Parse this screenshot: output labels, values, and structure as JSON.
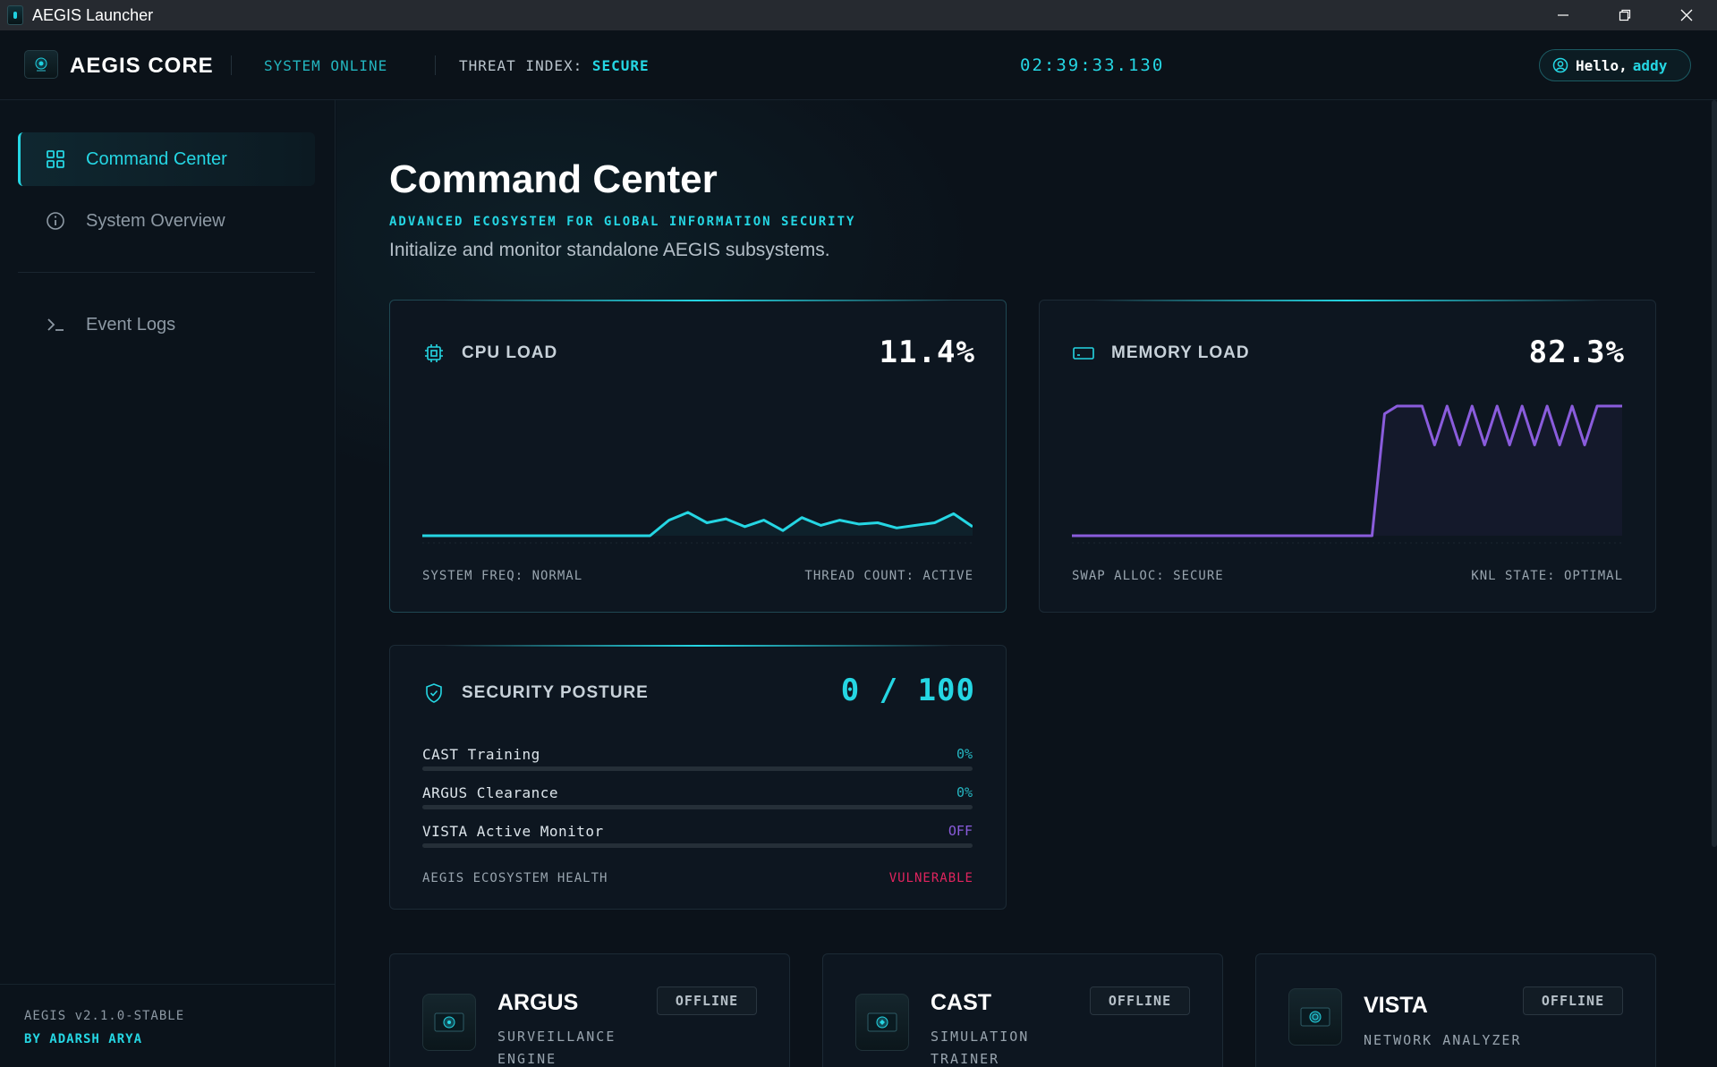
{
  "window": {
    "title": "AEGIS Launcher"
  },
  "header": {
    "brand": "AEGIS CORE",
    "status": "SYSTEM ONLINE",
    "threat_label": "THREAT INDEX:",
    "threat_value": "SECURE",
    "clock": "02:39:33.130",
    "greeting": "Hello,",
    "username": "addy"
  },
  "sidebar": {
    "items": [
      {
        "label": "Command Center",
        "icon": "grid-icon",
        "active": true
      },
      {
        "label": "System Overview",
        "icon": "info-icon",
        "active": false
      },
      {
        "label": "Event Logs",
        "icon": "terminal-icon",
        "active": false
      }
    ],
    "version": "AEGIS v2.1.0-STABLE",
    "author": "BY ADARSH ARYA"
  },
  "page": {
    "title": "Command Center",
    "tagline": "ADVANCED ECOSYSTEM FOR GLOBAL INFORMATION SECURITY",
    "description": "Initialize and monitor standalone AEGIS subsystems."
  },
  "cpu": {
    "label": "CPU LOAD",
    "value": "11.4%",
    "foot_left": "SYSTEM FREQ: NORMAL",
    "foot_right": "THREAD COUNT: ACTIVE",
    "color": "#25d6e3",
    "series": [
      0,
      0,
      0,
      0,
      0,
      0,
      0,
      0,
      0,
      0,
      0,
      0,
      0,
      12,
      18,
      10,
      13,
      7,
      12,
      4,
      14,
      8,
      12,
      9,
      10,
      6,
      8,
      10,
      17,
      7
    ]
  },
  "memory": {
    "label": "MEMORY LOAD",
    "value": "82.3%",
    "foot_left": "SWAP ALLOC: SECURE",
    "foot_right": "KNL STATE: OPTIMAL",
    "color": "#8a5cdc",
    "series": [
      0,
      0,
      0,
      0,
      0,
      0,
      0,
      0,
      0,
      0,
      0,
      0,
      0,
      0,
      0,
      0,
      0,
      0,
      0,
      0,
      0,
      0,
      0,
      0,
      0,
      94,
      100,
      100,
      100,
      70,
      100,
      70,
      100,
      70,
      100,
      70,
      100,
      70,
      100,
      70,
      100,
      70,
      100,
      100,
      100
    ]
  },
  "security": {
    "label": "SECURITY POSTURE",
    "value": "0 / 100",
    "rows": [
      {
        "label": "CAST Training",
        "value": "0%",
        "fill": 0,
        "value_color": "#25b5c0"
      },
      {
        "label": "ARGUS Clearance",
        "value": "0%",
        "fill": 0,
        "value_color": "#25b5c0"
      },
      {
        "label": "VISTA Active Monitor",
        "value": "OFF",
        "fill": 0,
        "value_color": "#8a5cdc"
      }
    ],
    "health_label": "AEGIS ECOSYSTEM HEALTH",
    "health_value": "VULNERABLE",
    "health_color": "#e0245e"
  },
  "modules": [
    {
      "name": "ARGUS",
      "subtitle": "SURVEILLANCE ENGINE",
      "status": "OFFLINE"
    },
    {
      "name": "CAST",
      "subtitle": "SIMULATION TRAINER",
      "status": "OFFLINE"
    },
    {
      "name": "VISTA",
      "subtitle": "NETWORK ANALYZER",
      "status": "OFFLINE"
    }
  ]
}
